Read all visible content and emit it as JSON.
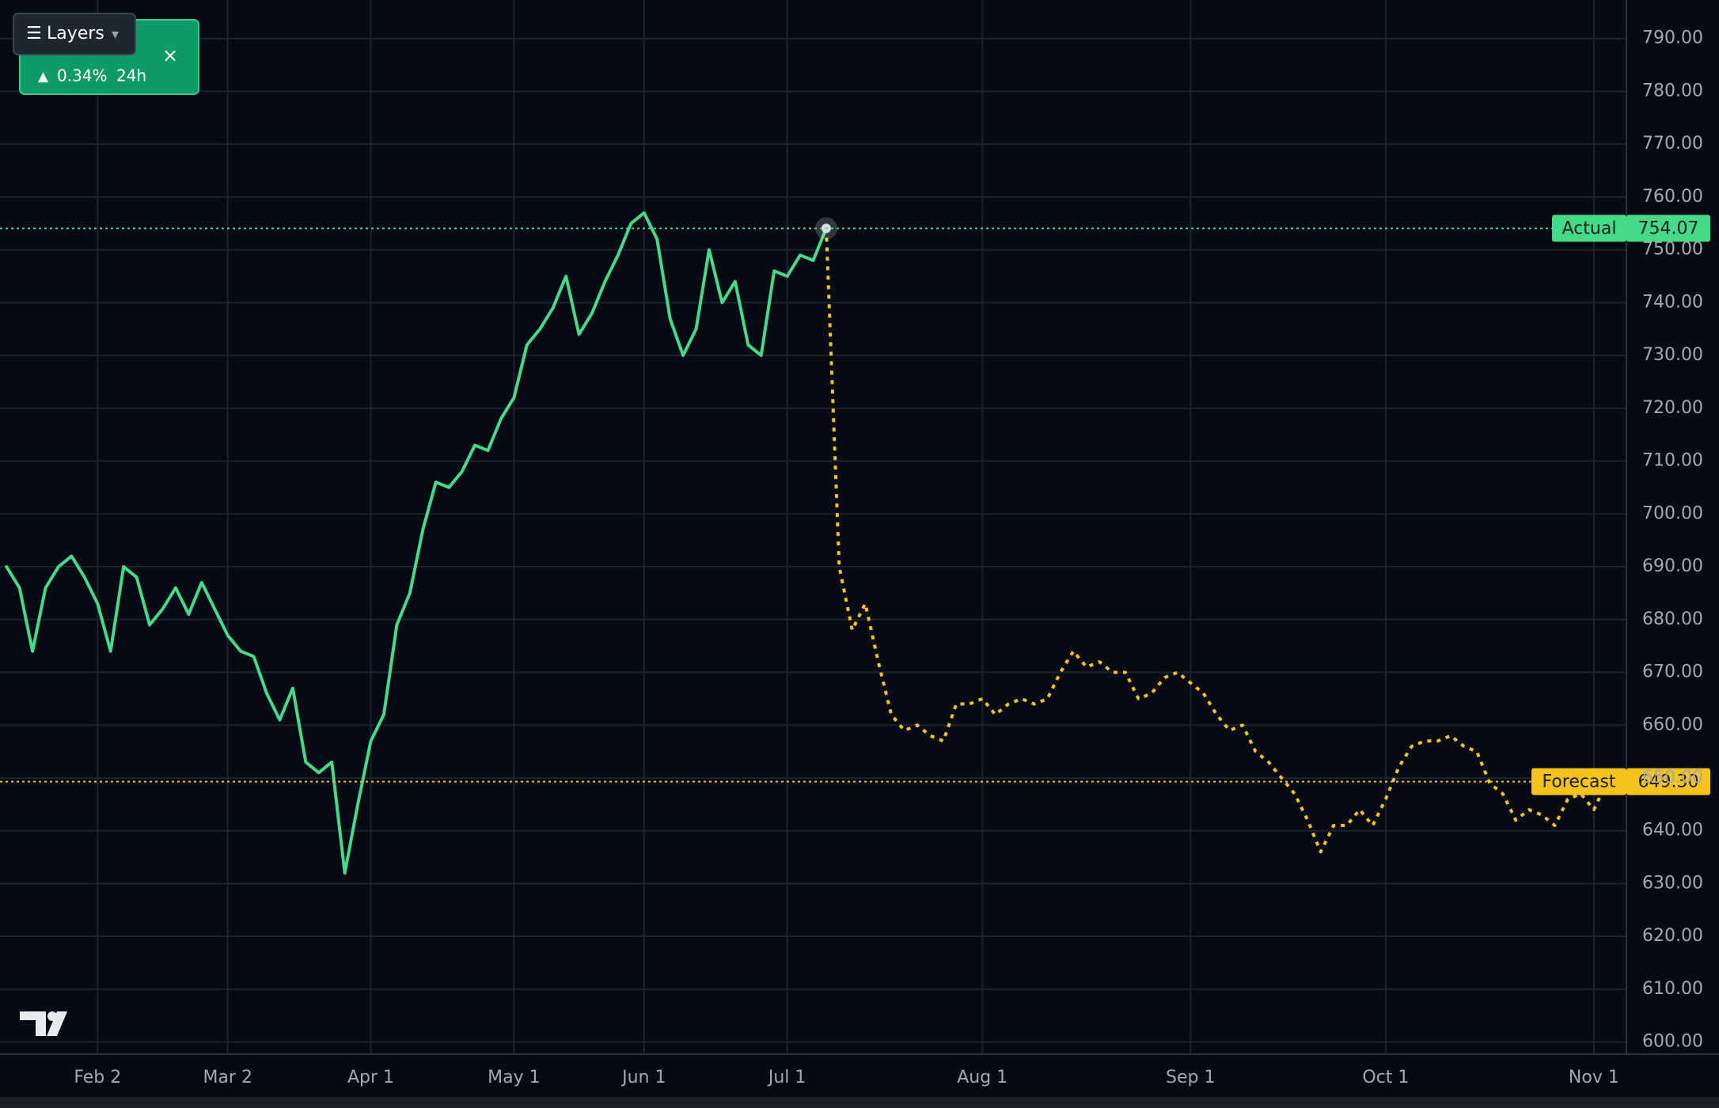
{
  "chart_data": {
    "type": "line",
    "widget": {
      "button": "Layers",
      "change": "0.34%",
      "period": "24h"
    },
    "categories": [
      null,
      null,
      null,
      null,
      null,
      null,
      null,
      "Feb 2",
      null,
      null,
      null,
      null,
      null,
      null,
      null,
      null,
      null,
      "Mar 2",
      null,
      null,
      null,
      null,
      null,
      null,
      null,
      null,
      null,
      null,
      "Apr 1",
      null,
      null,
      null,
      null,
      null,
      null,
      null,
      null,
      null,
      null,
      "May 1",
      null,
      null,
      null,
      null,
      null,
      null,
      null,
      null,
      null,
      "Jun 1",
      null,
      null,
      null,
      null,
      null,
      null,
      null,
      null,
      null,
      null,
      "Jul 1",
      null,
      null,
      null,
      null,
      null,
      null,
      null,
      null,
      null,
      null,
      null,
      null,
      null,
      null,
      "Aug 1",
      null,
      null,
      null,
      null,
      null,
      null,
      null,
      null,
      null,
      null,
      null,
      null,
      null,
      null,
      null,
      "Sep 1",
      null,
      null,
      null,
      null,
      null,
      null,
      null,
      null,
      null,
      null,
      null,
      null,
      null,
      null,
      "Oct 1",
      null,
      null,
      null,
      null,
      null,
      null,
      null,
      null,
      null,
      null,
      null,
      null,
      null,
      null,
      null,
      "Nov 1",
      null,
      null
    ],
    "series": [
      {
        "name": "Actual",
        "color": "#45d98a",
        "dashed": false,
        "values": [
          690,
          686,
          674,
          686,
          690,
          692,
          688,
          683,
          674,
          690,
          688,
          679,
          682,
          686,
          681,
          687,
          682,
          677,
          674,
          673,
          666,
          661,
          667,
          653,
          651,
          653,
          632,
          645,
          657,
          662,
          679,
          685,
          697,
          706,
          705,
          708,
          713,
          712,
          718,
          722,
          732,
          735,
          739,
          745,
          734,
          738,
          744,
          749,
          755,
          757,
          752,
          737,
          730,
          735,
          750,
          740,
          744,
          732,
          730,
          746,
          745,
          749,
          748,
          754.07,
          null,
          null,
          null,
          null,
          null,
          null,
          null,
          null,
          null,
          null,
          null,
          null,
          null,
          null,
          null,
          null,
          null,
          null,
          null,
          null,
          null,
          null,
          null,
          null,
          null,
          null,
          null,
          null,
          null,
          null,
          null,
          null,
          null,
          null,
          null,
          null,
          null,
          null,
          null,
          null,
          null,
          null,
          null,
          null,
          null,
          null,
          null,
          null,
          null,
          null,
          null,
          null,
          null,
          null,
          null,
          null,
          null,
          null,
          null,
          null,
          null
        ]
      },
      {
        "name": "Forecast",
        "color": "#f5c31c",
        "dashed": true,
        "values": [
          null,
          null,
          null,
          null,
          null,
          null,
          null,
          null,
          null,
          null,
          null,
          null,
          null,
          null,
          null,
          null,
          null,
          null,
          null,
          null,
          null,
          null,
          null,
          null,
          null,
          null,
          null,
          null,
          null,
          null,
          null,
          null,
          null,
          null,
          null,
          null,
          null,
          null,
          null,
          null,
          null,
          null,
          null,
          null,
          null,
          null,
          null,
          null,
          null,
          null,
          null,
          null,
          null,
          null,
          null,
          null,
          null,
          null,
          null,
          null,
          null,
          null,
          null,
          754.07,
          690,
          678,
          683,
          672,
          662,
          659,
          660,
          658,
          657,
          664,
          664,
          665,
          662,
          664,
          665,
          664,
          665,
          670,
          674,
          671,
          672,
          670,
          670,
          665,
          666,
          669,
          670,
          668,
          666,
          662,
          659,
          660,
          655,
          653,
          650,
          647,
          642,
          636,
          641,
          641,
          644,
          641,
          646,
          652,
          656,
          657,
          657,
          658,
          656,
          655,
          649,
          647,
          642,
          644,
          643,
          641,
          646,
          647,
          644,
          649.3,
          null
        ]
      }
    ],
    "price_lines": [
      {
        "value": 754.07,
        "label": "754.07"
      },
      {
        "value": 649.3,
        "label": "649.30"
      }
    ],
    "ylim": [
      597.7,
      797.3
    ],
    "yticks": [
      {
        "value": 600,
        "label": "600.00"
      },
      {
        "value": 610,
        "label": "610.00"
      },
      {
        "value": 620,
        "label": "620.00"
      },
      {
        "value": 630,
        "label": "630.00"
      },
      {
        "value": 640,
        "label": "640.00"
      },
      {
        "value": 650,
        "label": "650.00"
      },
      {
        "value": 660,
        "label": "660.00"
      },
      {
        "value": 670,
        "label": "670.00"
      },
      {
        "value": 680,
        "label": "680.00"
      },
      {
        "value": 690,
        "label": "690.00"
      },
      {
        "value": 700,
        "label": "700.00"
      },
      {
        "value": 710,
        "label": "710.00"
      },
      {
        "value": 720,
        "label": "720.00"
      },
      {
        "value": 730,
        "label": "730.00"
      },
      {
        "value": 740,
        "label": "740.00"
      },
      {
        "value": 750,
        "label": "750.00"
      },
      {
        "value": 760,
        "label": "760.00"
      },
      {
        "value": 770,
        "label": "770.00"
      },
      {
        "value": 780,
        "label": "780.00"
      },
      {
        "value": 790,
        "label": "790.00"
      }
    ],
    "grid": true
  }
}
